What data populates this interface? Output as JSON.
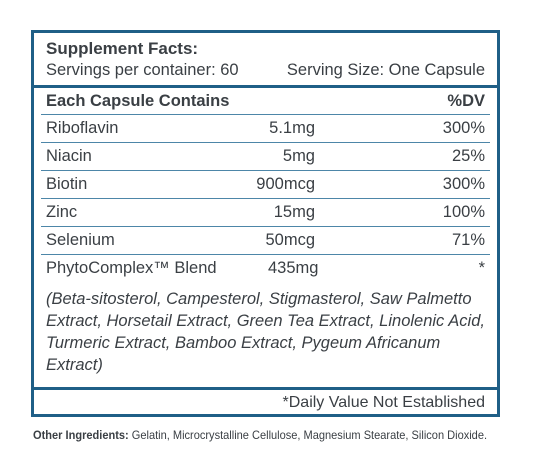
{
  "panel": {
    "title": "Supplement Facts:",
    "servings_per_container": "Servings per container: 60",
    "serving_size": "Serving Size: One Capsule",
    "header_left": "Each Capsule Contains",
    "header_right": "%DV",
    "rows": [
      {
        "name": "Riboflavin",
        "amount": "5.1mg",
        "dv": "300%"
      },
      {
        "name": "Niacin",
        "amount": "5mg",
        "dv": "25%"
      },
      {
        "name": "Biotin",
        "amount": "900mcg",
        "dv": "300%"
      },
      {
        "name": "Zinc",
        "amount": "15mg",
        "dv": "100%"
      },
      {
        "name": "Selenium",
        "amount": "50mcg",
        "dv": "71%"
      }
    ],
    "blend": {
      "name": "PhytoComplex™ Blend",
      "amount": "435mg",
      "dv": "*",
      "description": "(Beta-sitosterol, Campesterol, Stigmasterol, Saw Palmetto Extract, Horsetail Extract, Green Tea Extract, Linolenic Acid, Turmeric Extract, Bamboo Extract, Pygeum Africanum Extract)"
    },
    "footnote": "*Daily Value Not Established"
  },
  "other_ingredients": {
    "label": "Other Ingredients:",
    "text": " Gelatin, Microcrystalline Cellulose, Magnesium Stearate, Silicon Dioxide."
  }
}
